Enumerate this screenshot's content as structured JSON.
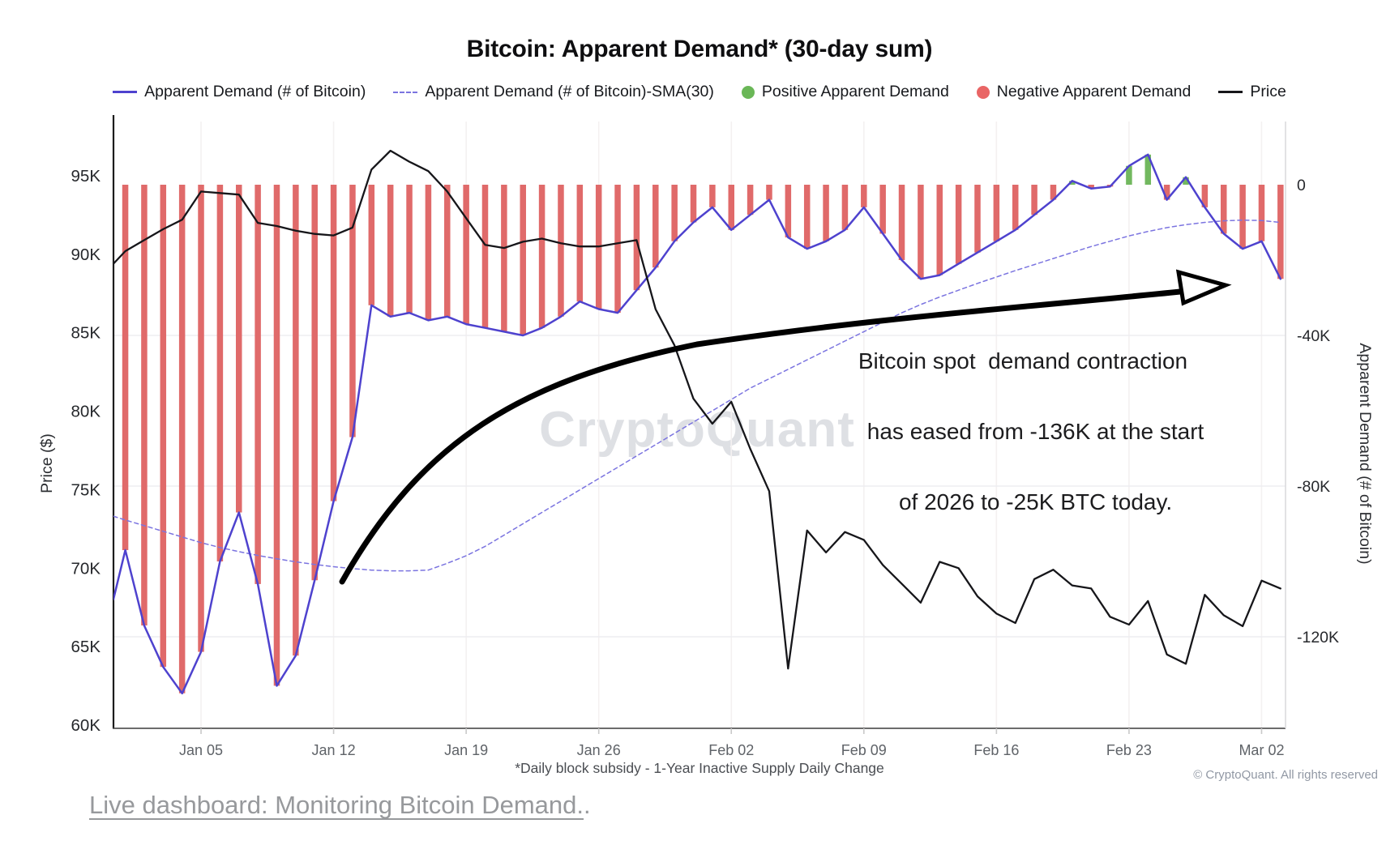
{
  "title": "Bitcoin: Apparent Demand* (30-day sum)",
  "watermark": {
    "text": "CryptoQuant"
  },
  "legend": {
    "items": [
      {
        "label": "Apparent Demand (# of Bitcoin)",
        "swatch": "line",
        "color": "#4e42ce"
      },
      {
        "label": "Apparent Demand (# of Bitcoin)-SMA(30)",
        "swatch": "dash",
        "color": "#7b74e0"
      },
      {
        "label": "Positive Apparent Demand",
        "swatch": "dot",
        "color": "#6ab757"
      },
      {
        "label": "Negative Apparent Demand",
        "swatch": "dot",
        "color": "#e96565"
      },
      {
        "label": "Price",
        "swatch": "line",
        "color": "#16161a"
      }
    ]
  },
  "annotation": {
    "lines": [
      "Bitcoin spot  demand contraction",
      "has eased from -136K at the start",
      "of 2026 to -25K BTC today."
    ]
  },
  "footnote": "*Daily block subsidy - 1-Year Inactive Supply Daily Change",
  "copyright": "© CryptoQuant. All rights reserved",
  "link": {
    "text": "Live dashboard: Monitoring Bitcoin Demand.",
    "suffix": "."
  },
  "chart_data": {
    "type": "mixed",
    "title": "Bitcoin: Apparent Demand* (30-day sum)",
    "x_dates": [
      "Dec 31",
      "Jan 01",
      "Jan 02",
      "Jan 03",
      "Jan 04",
      "Jan 05",
      "Jan 06",
      "Jan 07",
      "Jan 08",
      "Jan 09",
      "Jan 10",
      "Jan 11",
      "Jan 12",
      "Jan 13",
      "Jan 14",
      "Jan 15",
      "Jan 16",
      "Jan 17",
      "Jan 18",
      "Jan 19",
      "Jan 20",
      "Jan 21",
      "Jan 22",
      "Jan 23",
      "Jan 24",
      "Jan 25",
      "Jan 26",
      "Jan 27",
      "Jan 28",
      "Jan 29",
      "Jan 30",
      "Jan 31",
      "Feb 01",
      "Feb 02",
      "Feb 03",
      "Feb 04",
      "Feb 05",
      "Feb 06",
      "Feb 07",
      "Feb 08",
      "Feb 09",
      "Feb 10",
      "Feb 11",
      "Feb 12",
      "Feb 13",
      "Feb 14",
      "Feb 15",
      "Feb 16",
      "Feb 17",
      "Feb 18",
      "Feb 19",
      "Feb 20",
      "Feb 21",
      "Feb 22",
      "Feb 23",
      "Feb 24",
      "Feb 25",
      "Feb 26",
      "Feb 27",
      "Feb 28",
      "Mar 01",
      "Mar 02",
      "Mar 03"
    ],
    "x_tick_labels": [
      "Jan 05",
      "Jan 12",
      "Jan 19",
      "Jan 26",
      "Feb 02",
      "Feb 09",
      "Feb 16",
      "Feb 23",
      "Mar 02"
    ],
    "x_tick_indices": [
      5,
      12,
      19,
      26,
      33,
      40,
      47,
      54,
      61
    ],
    "left_axis": {
      "label": "Price ($)",
      "tick_values": [
        95,
        90,
        85,
        80,
        75,
        70,
        65,
        60
      ],
      "tick_labels": [
        "95K",
        "90K",
        "85K",
        "80K",
        "75K",
        "70K",
        "65K",
        "60K"
      ],
      "unit": "K USD",
      "range": [
        59.8,
        98.5
      ]
    },
    "right_axis": {
      "label": "Apparent Demand (# of Bitcoin)",
      "tick_values": [
        0,
        -40,
        -80,
        -120
      ],
      "tick_labels": [
        "0",
        "-40K",
        "-80K",
        "-120K"
      ],
      "unit": "K BTC",
      "range": [
        -144,
        17
      ]
    },
    "grid": "faint horizontal at right-axis ticks, faint vertical at weekly x ticks",
    "series": [
      {
        "name": "Apparent Demand (# of Bitcoin)",
        "type": "line",
        "axis": "right",
        "color": "#4e42ce",
        "bars": true,
        "bar_pos_color": "#72b85f",
        "bar_neg_color": "#e06a6a",
        "values": [
          -110,
          -97,
          -117,
          -128,
          -135,
          -124,
          -100,
          -87,
          -106,
          -133,
          -125,
          -105,
          -84,
          -67,
          -32,
          -35,
          -34,
          -36,
          -35,
          -37,
          -38,
          -39,
          -40,
          -38,
          -35,
          -31,
          -33,
          -34,
          -28,
          -22,
          -15,
          -10,
          -6,
          -12,
          -8,
          -4,
          -14,
          -17,
          -15,
          -12,
          -6,
          -13,
          -20,
          -25,
          -24,
          -21,
          -18,
          -15,
          -12,
          -8,
          -4,
          1,
          -1,
          -0.5,
          5,
          8,
          -4,
          2,
          -6,
          -13,
          -17,
          -15,
          -25
        ]
      },
      {
        "name": "Apparent Demand (# of Bitcoin)-SMA(30)",
        "type": "dashed-line",
        "axis": "right",
        "color": "#7b74e0",
        "values": [
          -88,
          -89,
          -90.5,
          -92,
          -93.5,
          -95,
          -96.3,
          -97.4,
          -98.4,
          -99.3,
          -100.1,
          -100.8,
          -101.4,
          -101.9,
          -102.3,
          -102.5,
          -102.5,
          -102.3,
          -100.5,
          -98.5,
          -96,
          -93,
          -90,
          -87,
          -84,
          -81,
          -78,
          -75,
          -72,
          -69,
          -66,
          -63,
          -60,
          -57,
          -54,
          -51.5,
          -49,
          -46.5,
          -44,
          -41.5,
          -39,
          -36.5,
          -34,
          -31.8,
          -29.8,
          -28,
          -26.2,
          -24.5,
          -22.8,
          -21.2,
          -19.6,
          -18,
          -16.4,
          -15,
          -13.6,
          -12.4,
          -11.4,
          -10.6,
          -10,
          -9.6,
          -9.4,
          -9.5,
          -10
        ]
      },
      {
        "name": "Price",
        "type": "line",
        "axis": "left",
        "color": "#16161a",
        "values": [
          89.4,
          90.2,
          90.9,
          91.6,
          92.2,
          94.0,
          93.9,
          93.8,
          92.0,
          91.8,
          91.5,
          91.3,
          91.2,
          91.7,
          95.4,
          96.6,
          95.9,
          95.3,
          94.0,
          92.3,
          90.6,
          90.4,
          90.8,
          91.0,
          90.7,
          90.5,
          90.5,
          90.7,
          90.9,
          86.5,
          84.2,
          80.8,
          79.2,
          80.6,
          77.6,
          74.9,
          63.6,
          72.4,
          71.0,
          72.3,
          71.8,
          70.2,
          69.0,
          67.8,
          70.4,
          70.0,
          68.2,
          67.1,
          66.5,
          69.3,
          69.9,
          68.9,
          68.7,
          66.9,
          66.4,
          67.9,
          64.5,
          63.9,
          68.3,
          67.0,
          66.3,
          69.2,
          68.7
        ]
      }
    ]
  }
}
